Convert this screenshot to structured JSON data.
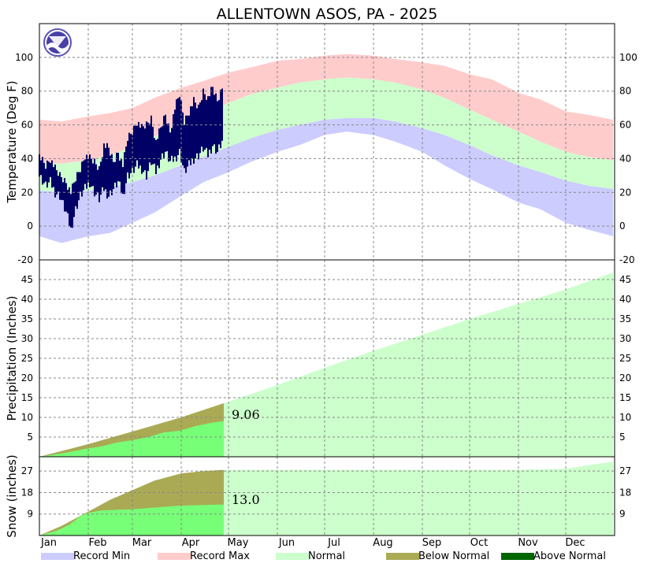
{
  "title": "ALLENTOWN       ASOS, PA - 2025",
  "months": [
    "Jan",
    "Feb",
    "Mar",
    "Apr",
    "May",
    "Jun",
    "Jul",
    "Aug",
    "Sep",
    "Oct",
    "Nov",
    "Dec"
  ],
  "colors": {
    "record_min": "#ccccff",
    "record_max": "#ffcccc",
    "normal": "#ccffcc",
    "below_normal": "#aaaa55",
    "above_normal": "#006600",
    "observed_temp": "#000066",
    "observed_fill": "#77ff77"
  },
  "legend": [
    {
      "label": "Record Min",
      "color_key": "record_min"
    },
    {
      "label": "Record Max",
      "color_key": "record_max"
    },
    {
      "label": "Normal",
      "color_key": "normal"
    },
    {
      "label": "Below Normal",
      "color_key": "below_normal"
    },
    {
      "label": "Above Normal",
      "color_key": "above_normal"
    }
  ],
  "chart_data": [
    {
      "type": "area",
      "panel": "temperature",
      "ylabel": "Temperature (Deg F)",
      "ylim": [
        -20,
        120
      ],
      "yticks": [
        -20,
        0,
        20,
        40,
        60,
        80,
        100
      ],
      "grid": true,
      "x_unit": "day of year",
      "series": [
        {
          "name": "Record Max",
          "x": [
            1,
            15,
            32,
            46,
            60,
            74,
            91,
            105,
            121,
            135,
            152,
            166,
            182,
            196,
            213,
            227,
            244,
            258,
            274,
            288,
            305,
            319,
            335,
            349,
            365
          ],
          "values": [
            63,
            62,
            65,
            67,
            70,
            76,
            82,
            86,
            91,
            94,
            98,
            99,
            101,
            102,
            101,
            99,
            97,
            95,
            90,
            87,
            79,
            75,
            68,
            66,
            63
          ]
        },
        {
          "name": "Normal",
          "x": [
            1,
            15,
            32,
            46,
            60,
            74,
            91,
            105,
            121,
            135,
            152,
            166,
            182,
            196,
            213,
            227,
            244,
            258,
            274,
            288,
            305,
            319,
            335,
            349,
            365
          ],
          "values": [
            [
              21,
              38
            ],
            [
              20,
              37
            ],
            [
              21,
              39
            ],
            [
              23,
              42
            ],
            [
              26,
              47
            ],
            [
              30,
              53
            ],
            [
              36,
              61
            ],
            [
              41,
              66
            ],
            [
              47,
              73
            ],
            [
              52,
              78
            ],
            [
              57,
              82
            ],
            [
              60,
              85
            ],
            [
              63,
              87
            ],
            [
              64,
              88
            ],
            [
              64,
              87
            ],
            [
              62,
              85
            ],
            [
              58,
              81
            ],
            [
              54,
              76
            ],
            [
              48,
              69
            ],
            [
              42,
              63
            ],
            [
              36,
              56
            ],
            [
              32,
              50
            ],
            [
              27,
              44
            ],
            [
              24,
              41
            ],
            [
              22,
              39
            ]
          ]
        },
        {
          "name": "Record Min",
          "x": [
            1,
            15,
            32,
            46,
            60,
            74,
            91,
            105,
            121,
            135,
            152,
            166,
            182,
            196,
            213,
            227,
            244,
            258,
            274,
            288,
            305,
            319,
            335,
            349,
            365
          ],
          "values": [
            -6,
            -10,
            -6,
            -4,
            2,
            8,
            18,
            26,
            32,
            38,
            44,
            48,
            54,
            56,
            54,
            50,
            44,
            36,
            28,
            22,
            14,
            10,
            2,
            -2,
            -6
          ]
        },
        {
          "name": "Observed",
          "x": [
            1,
            5,
            8,
            11,
            14,
            18,
            21,
            24,
            27,
            30,
            33,
            36,
            39,
            42,
            45,
            48,
            51,
            54,
            57,
            60,
            63,
            66,
            69,
            72,
            75,
            78,
            81,
            84,
            87,
            90,
            93,
            96,
            99,
            102,
            105,
            108,
            111,
            114,
            117
          ],
          "values": [
            [
              30,
              42
            ],
            [
              24,
              36
            ],
            [
              26,
              40
            ],
            [
              20,
              34
            ],
            [
              18,
              30
            ],
            [
              8,
              26
            ],
            [
              -2,
              20
            ],
            [
              10,
              28
            ],
            [
              18,
              34
            ],
            [
              22,
              42
            ],
            [
              26,
              40
            ],
            [
              20,
              38
            ],
            [
              16,
              34
            ],
            [
              22,
              48
            ],
            [
              18,
              46
            ],
            [
              22,
              38
            ],
            [
              26,
              44
            ],
            [
              18,
              36
            ],
            [
              30,
              52
            ],
            [
              32,
              56
            ],
            [
              36,
              62
            ],
            [
              34,
              58
            ],
            [
              30,
              60
            ],
            [
              38,
              64
            ],
            [
              32,
              50
            ],
            [
              40,
              58
            ],
            [
              44,
              66
            ],
            [
              38,
              56
            ],
            [
              40,
              70
            ],
            [
              44,
              78
            ],
            [
              32,
              62
            ],
            [
              36,
              68
            ],
            [
              40,
              74
            ],
            [
              42,
              70
            ],
            [
              46,
              80
            ],
            [
              42,
              76
            ],
            [
              48,
              82
            ],
            [
              44,
              74
            ],
            [
              50,
              82
            ]
          ]
        }
      ]
    },
    {
      "type": "area",
      "panel": "precipitation",
      "ylabel": "Precipitation (Inches)",
      "ylim": [
        0,
        50
      ],
      "yticks": [
        5,
        10,
        15,
        20,
        25,
        30,
        35,
        40,
        45
      ],
      "grid": true,
      "annotation": "9.06",
      "series": [
        {
          "name": "Normal",
          "x": [
            1,
            32,
            60,
            91,
            121,
            152,
            182,
            213,
            244,
            274,
            305,
            335,
            365
          ],
          "values": [
            0,
            3.2,
            6.4,
            10.0,
            14.0,
            18.2,
            22.6,
            26.9,
            31.0,
            35.0,
            38.8,
            42.5,
            46.8
          ]
        },
        {
          "name": "Observed",
          "x": [
            1,
            10,
            20,
            30,
            40,
            50,
            60,
            70,
            80,
            90,
            100,
            110,
            118
          ],
          "values": [
            0,
            0.5,
            1.2,
            2.0,
            2.6,
            3.6,
            4.2,
            5.0,
            6.2,
            6.6,
            7.8,
            8.6,
            9.06
          ]
        }
      ]
    },
    {
      "type": "area",
      "panel": "snow",
      "ylabel": "Snow (inches)",
      "ylim": [
        0,
        33
      ],
      "yticks": [
        9,
        18,
        27
      ],
      "grid": true,
      "annotation": "13.0",
      "series": [
        {
          "name": "Normal",
          "x": [
            1,
            15,
            32,
            46,
            60,
            74,
            91,
            105,
            118,
            305,
            335,
            350,
            365
          ],
          "values": [
            0,
            4,
            10,
            15,
            19,
            23,
            26,
            27,
            27.5,
            27.5,
            28,
            29.5,
            31
          ]
        },
        {
          "name": "Observed",
          "x": [
            1,
            12,
            20,
            24,
            28,
            32,
            36,
            40,
            60,
            90,
            118
          ],
          "values": [
            0,
            2,
            4.5,
            6.5,
            8.5,
            9.5,
            10,
            10.5,
            11,
            12.5,
            13.0
          ]
        }
      ]
    }
  ]
}
